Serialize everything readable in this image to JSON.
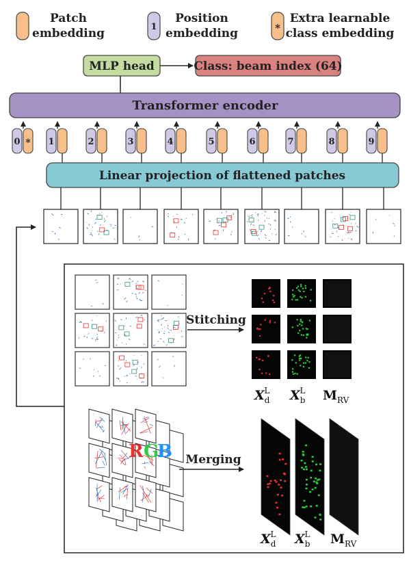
{
  "legend": {
    "patch": {
      "line1": "Patch",
      "line2": "embedding"
    },
    "position": {
      "badge": "1",
      "line1": "Position",
      "line2": "embedding"
    },
    "extra": {
      "badge": "*",
      "line1": "Extra learnable",
      "line2": "class embedding"
    }
  },
  "mlp_head": "MLP head",
  "class_output": "Class: beam index (64)",
  "transformer": "Transformer encoder",
  "tokens": [
    "0",
    "1",
    "2",
    "3",
    "4",
    "5",
    "6",
    "7",
    "8",
    "9"
  ],
  "class_token_symbol": "*",
  "projection": "Linear projection of flattened patches",
  "stitching": "Stitching",
  "merging": "Merging",
  "rgb": [
    "R",
    "G",
    "B"
  ],
  "outputs": {
    "xd_base": "X",
    "xd_sub": "d",
    "xd_sup": "L",
    "xb_base": "X",
    "xb_sub": "b",
    "xb_sup": "L",
    "mrv_base": "M",
    "mrv_sub": "RV"
  },
  "colors": {
    "patch": "#f7c08b",
    "position": "#d0c8e6",
    "mlp": "#c5dca0",
    "class": "#d9827f",
    "transformer": "#a592c4",
    "projection": "#88c9d6",
    "red": "#e83030",
    "green": "#2ecc40",
    "blue": "#1e90ff"
  }
}
